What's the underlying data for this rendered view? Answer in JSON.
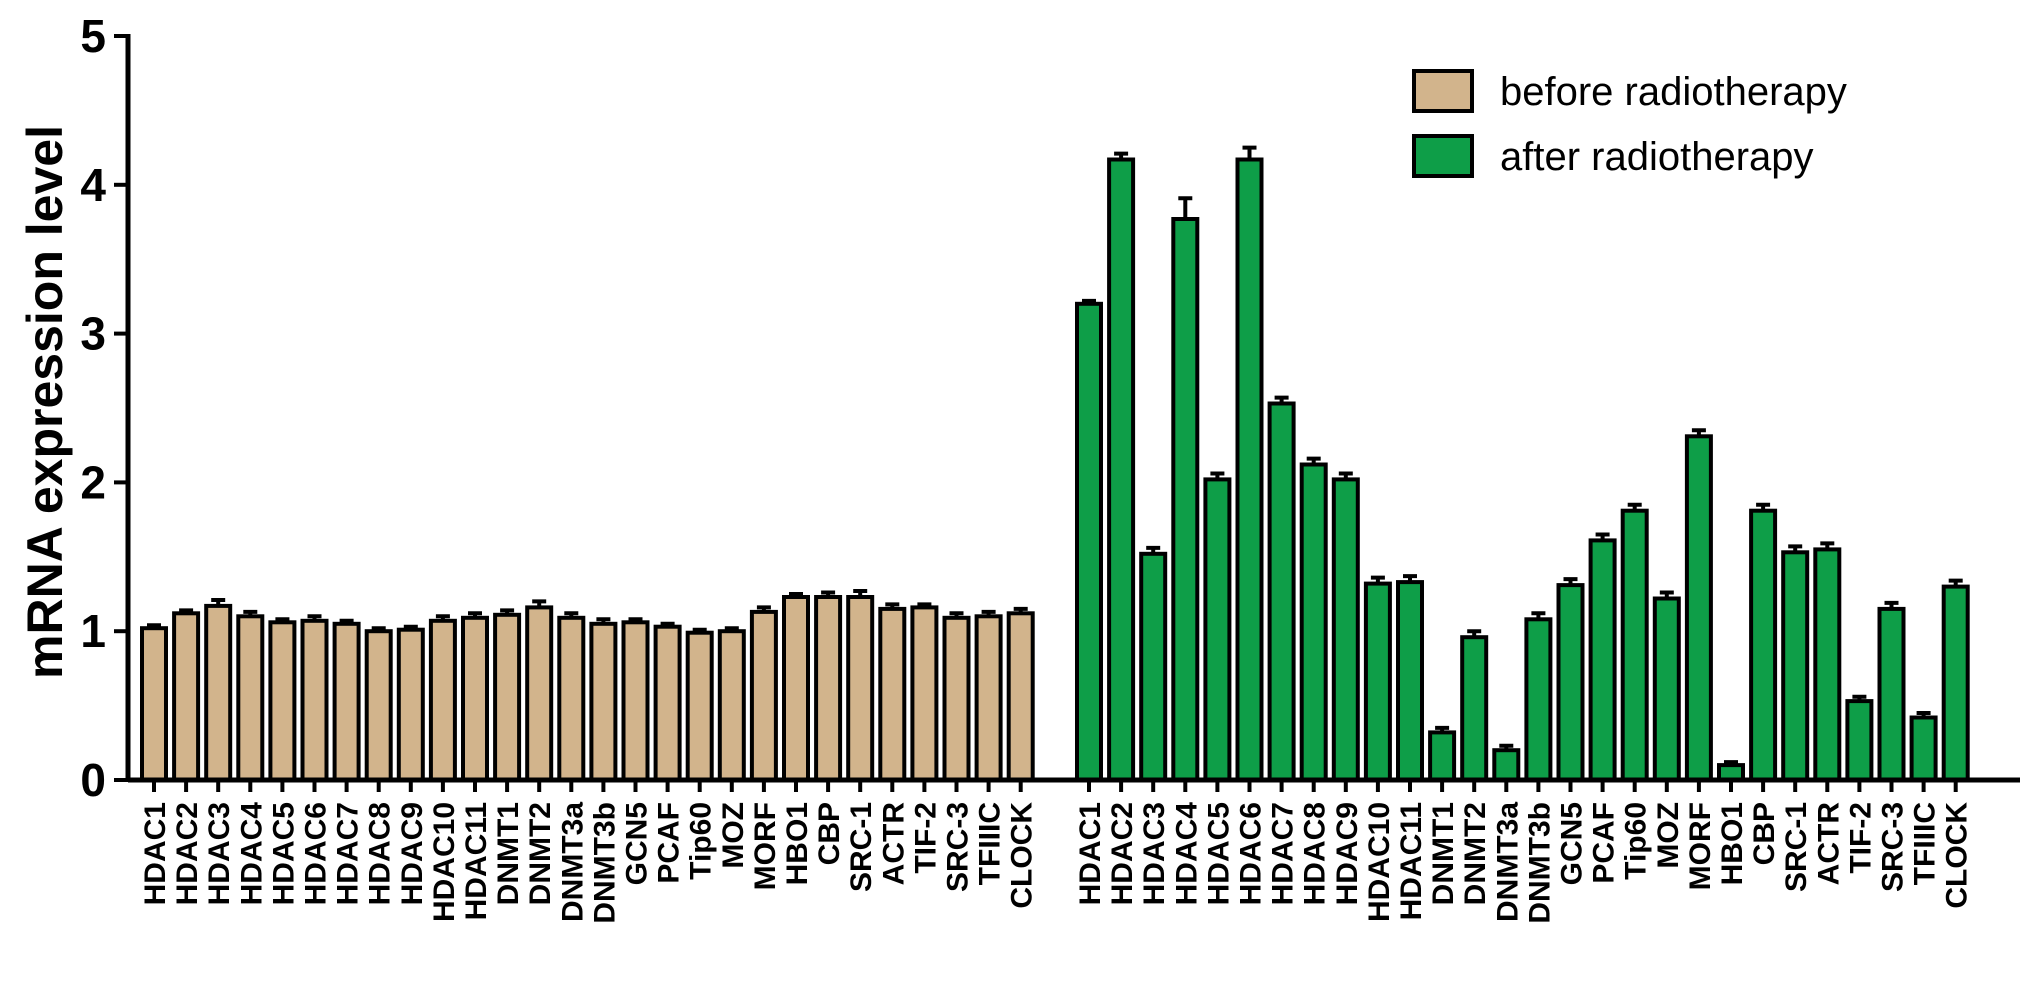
{
  "chart_data": {
    "type": "bar",
    "xlabel": "",
    "ylabel": "mRNA expression level",
    "ylim": [
      0,
      5
    ],
    "yticks": [
      "0",
      "1",
      "2",
      "3",
      "4",
      "5"
    ],
    "grid": false,
    "legend_position": "top-right",
    "series": [
      {
        "name": "before radiotherapy",
        "color": "#D2B48C",
        "categories": [
          "HDAC1",
          "HDAC2",
          "HDAC3",
          "HDAC4",
          "HDAC5",
          "HDAC6",
          "HDAC7",
          "HDAC8",
          "HDAC9",
          "HDAC10",
          "HDAC11",
          "DNMT1",
          "DNMT2",
          "DNMT3a",
          "DNMT3b",
          "GCN5",
          "PCAF",
          "Tip60",
          "MOZ",
          "MORF",
          "HBO1",
          "CBP",
          "SRC-1",
          "ACTR",
          "TIF-2",
          "SRC-3",
          "TFIIIC",
          "CLOCK"
        ],
        "values": [
          1.02,
          1.12,
          1.17,
          1.1,
          1.06,
          1.07,
          1.05,
          1.0,
          1.01,
          1.07,
          1.09,
          1.11,
          1.16,
          1.09,
          1.05,
          1.06,
          1.03,
          0.99,
          1.0,
          1.13,
          1.23,
          1.23,
          1.23,
          1.15,
          1.16,
          1.09,
          1.1,
          1.12
        ],
        "errors": [
          0.02,
          0.02,
          0.04,
          0.03,
          0.02,
          0.03,
          0.02,
          0.02,
          0.02,
          0.03,
          0.03,
          0.03,
          0.04,
          0.03,
          0.03,
          0.02,
          0.02,
          0.02,
          0.02,
          0.03,
          0.02,
          0.03,
          0.04,
          0.03,
          0.02,
          0.03,
          0.03,
          0.03
        ]
      },
      {
        "name": "after radiotherapy",
        "color": "#0E9E48",
        "categories": [
          "HDAC1",
          "HDAC2",
          "HDAC3",
          "HDAC4",
          "HDAC5",
          "HDAC6",
          "HDAC7",
          "HDAC8",
          "HDAC9",
          "HDAC10",
          "HDAC11",
          "DNMT1",
          "DNMT2",
          "DNMT3a",
          "DNMT3b",
          "GCN5",
          "PCAF",
          "Tip60",
          "MOZ",
          "MORF",
          "HBO1",
          "CBP",
          "SRC-1",
          "ACTR",
          "TIF-2",
          "SRC-3",
          "TFIIIC",
          "CLOCK"
        ],
        "values": [
          3.2,
          4.17,
          1.52,
          3.77,
          2.02,
          4.17,
          2.53,
          2.12,
          2.02,
          1.32,
          1.33,
          0.32,
          0.96,
          0.2,
          1.08,
          1.31,
          1.61,
          1.81,
          1.22,
          2.31,
          0.1,
          1.81,
          1.53,
          1.55,
          0.53,
          1.15,
          0.42,
          1.3
        ],
        "errors": [
          0.02,
          0.04,
          0.04,
          0.14,
          0.04,
          0.08,
          0.04,
          0.04,
          0.04,
          0.04,
          0.04,
          0.03,
          0.04,
          0.03,
          0.04,
          0.04,
          0.04,
          0.04,
          0.04,
          0.04,
          0.02,
          0.04,
          0.04,
          0.04,
          0.03,
          0.04,
          0.03,
          0.04
        ]
      }
    ]
  }
}
